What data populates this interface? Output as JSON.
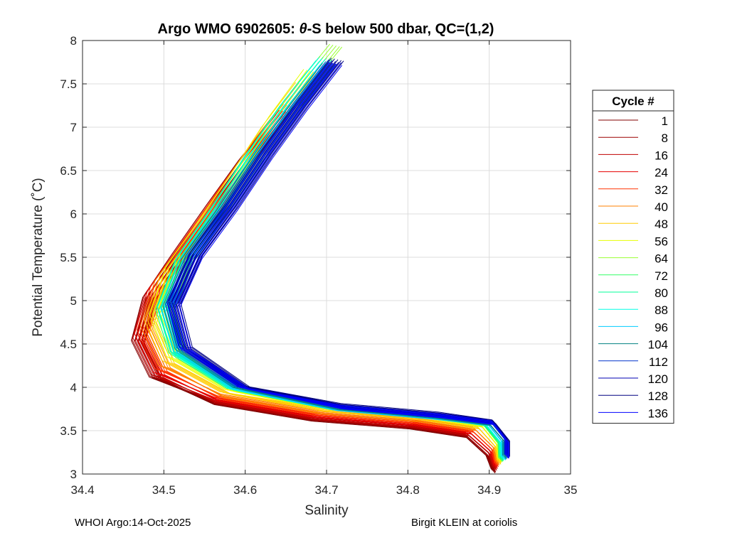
{
  "chart_data": {
    "type": "line",
    "title_parts": [
      "Argo WMO 6902605: ",
      "θ",
      "-S below 500 dbar,  QC=(1,2)"
    ],
    "xlabel": "Salinity",
    "ylabel": "Potential Temperature (˚C)",
    "xlim": [
      34.4,
      35
    ],
    "ylim": [
      3,
      8
    ],
    "xticks": [
      "34.4",
      "34.5",
      "34.6",
      "34.7",
      "34.8",
      "34.9",
      "35"
    ],
    "yticks": [
      "3",
      "3.5",
      "4",
      "4.5",
      "5",
      "5.5",
      "6",
      "6.5",
      "7",
      "7.5",
      "8"
    ],
    "grid": true,
    "legend_position": "right",
    "legend_title": "Cycle #",
    "series": [
      {
        "name": "1",
        "color": "#800000",
        "points": [
          [
            34.642,
            7.09
          ],
          [
            34.6,
            6.6
          ],
          [
            34.56,
            6.08
          ],
          [
            34.518,
            5.52
          ],
          [
            34.482,
            5.02
          ],
          [
            34.468,
            4.52
          ],
          [
            34.49,
            4.1
          ],
          [
            34.56,
            3.82
          ],
          [
            34.68,
            3.63
          ],
          [
            34.8,
            3.54
          ],
          [
            34.87,
            3.44
          ],
          [
            34.898,
            3.2
          ],
          [
            34.905,
            3.03
          ]
        ]
      },
      {
        "name": "8",
        "color": "#9b0000",
        "points": [
          [
            34.643,
            7.11
          ],
          [
            34.601,
            6.61
          ],
          [
            34.561,
            6.09
          ],
          [
            34.519,
            5.53
          ],
          [
            34.483,
            5.03
          ],
          [
            34.469,
            4.53
          ],
          [
            34.491,
            4.11
          ],
          [
            34.561,
            3.83
          ],
          [
            34.681,
            3.64
          ],
          [
            34.801,
            3.55
          ],
          [
            34.871,
            3.45
          ],
          [
            34.899,
            3.21
          ],
          [
            34.906,
            3.04
          ]
        ]
      },
      {
        "name": "16",
        "color": "#bf0000",
        "points": [
          [
            34.646,
            7.13
          ],
          [
            34.604,
            6.63
          ],
          [
            34.564,
            6.11
          ],
          [
            34.522,
            5.55
          ],
          [
            34.485,
            5.05
          ],
          [
            34.47,
            4.55
          ],
          [
            34.492,
            4.13
          ],
          [
            34.562,
            3.84
          ],
          [
            34.682,
            3.65
          ],
          [
            34.802,
            3.56
          ],
          [
            34.873,
            3.46
          ],
          [
            34.901,
            3.23
          ],
          [
            34.907,
            3.06
          ]
        ]
      },
      {
        "name": "24",
        "color": "#e60000",
        "points": [
          [
            34.65,
            7.18
          ],
          [
            34.608,
            6.68
          ],
          [
            34.568,
            6.16
          ],
          [
            34.526,
            5.6
          ],
          [
            34.488,
            5.1
          ],
          [
            34.472,
            4.6
          ],
          [
            34.494,
            4.16
          ],
          [
            34.565,
            3.86
          ],
          [
            34.685,
            3.67
          ],
          [
            34.805,
            3.58
          ],
          [
            34.876,
            3.48
          ],
          [
            34.903,
            3.25
          ],
          [
            34.908,
            3.08
          ]
        ]
      },
      {
        "name": "32",
        "color": "#ff3300",
        "points": [
          [
            34.655,
            7.25
          ],
          [
            34.613,
            6.75
          ],
          [
            34.573,
            6.23
          ],
          [
            34.531,
            5.66
          ],
          [
            34.492,
            5.15
          ],
          [
            34.475,
            4.64
          ],
          [
            34.497,
            4.2
          ],
          [
            34.568,
            3.88
          ],
          [
            34.688,
            3.69
          ],
          [
            34.808,
            3.6
          ],
          [
            34.879,
            3.5
          ],
          [
            34.905,
            3.27
          ],
          [
            34.909,
            3.1
          ]
        ]
      },
      {
        "name": "40",
        "color": "#ff8000",
        "points": [
          [
            34.662,
            7.35
          ],
          [
            34.62,
            6.85
          ],
          [
            34.58,
            6.31
          ],
          [
            34.537,
            5.73
          ],
          [
            34.497,
            5.21
          ],
          [
            34.479,
            4.69
          ],
          [
            34.501,
            4.24
          ],
          [
            34.572,
            3.9
          ],
          [
            34.692,
            3.71
          ],
          [
            34.812,
            3.62
          ],
          [
            34.882,
            3.52
          ],
          [
            34.907,
            3.29
          ],
          [
            34.91,
            3.12
          ]
        ]
      },
      {
        "name": "48",
        "color": "#ffcc00",
        "points": [
          [
            34.67,
            7.5
          ],
          [
            34.628,
            6.98
          ],
          [
            34.588,
            6.41
          ],
          [
            34.545,
            5.82
          ],
          [
            34.504,
            5.29
          ],
          [
            34.484,
            4.76
          ],
          [
            34.506,
            4.29
          ],
          [
            34.577,
            3.93
          ],
          [
            34.697,
            3.74
          ],
          [
            34.817,
            3.64
          ],
          [
            34.886,
            3.54
          ],
          [
            34.909,
            3.3
          ],
          [
            34.912,
            3.13
          ]
        ]
      },
      {
        "name": "56",
        "color": "#e6ff00",
        "points": [
          [
            34.68,
            7.65
          ],
          [
            34.637,
            7.1
          ],
          [
            34.596,
            6.52
          ],
          [
            34.553,
            5.92
          ],
          [
            34.511,
            5.38
          ],
          [
            34.49,
            4.83
          ],
          [
            34.511,
            4.34
          ],
          [
            34.582,
            3.96
          ],
          [
            34.702,
            3.76
          ],
          [
            34.822,
            3.66
          ],
          [
            34.89,
            3.56
          ],
          [
            34.911,
            3.32
          ],
          [
            34.913,
            3.15
          ]
        ]
      },
      {
        "name": "64",
        "color": "#99ff33",
        "points": [
          [
            34.712,
            7.94
          ],
          [
            34.665,
            7.4
          ],
          [
            34.62,
            6.8
          ],
          [
            34.574,
            6.16
          ],
          [
            34.53,
            5.56
          ],
          [
            34.505,
            4.97
          ],
          [
            34.52,
            4.44
          ],
          [
            34.59,
            4.0
          ],
          [
            34.71,
            3.78
          ],
          [
            34.83,
            3.68
          ],
          [
            34.893,
            3.57
          ],
          [
            34.913,
            3.33
          ],
          [
            34.915,
            3.17
          ]
        ]
      },
      {
        "name": "72",
        "color": "#33ff66",
        "points": [
          [
            34.7,
            7.8
          ],
          [
            34.655,
            7.28
          ],
          [
            34.612,
            6.7
          ],
          [
            34.568,
            6.08
          ],
          [
            34.525,
            5.5
          ],
          [
            34.5,
            4.92
          ],
          [
            34.516,
            4.4
          ],
          [
            34.586,
            3.98
          ],
          [
            34.706,
            3.77
          ],
          [
            34.826,
            3.67
          ],
          [
            34.892,
            3.58
          ],
          [
            34.913,
            3.34
          ],
          [
            34.914,
            3.16
          ]
        ]
      },
      {
        "name": "80",
        "color": "#00ff99",
        "points": [
          [
            34.695,
            7.75
          ],
          [
            34.65,
            7.22
          ],
          [
            34.607,
            6.64
          ],
          [
            34.564,
            6.02
          ],
          [
            34.522,
            5.45
          ],
          [
            34.498,
            4.88
          ],
          [
            34.514,
            4.38
          ],
          [
            34.585,
            3.97
          ],
          [
            34.705,
            3.76
          ],
          [
            34.825,
            3.66
          ],
          [
            34.893,
            3.58
          ],
          [
            34.914,
            3.35
          ],
          [
            34.915,
            3.17
          ]
        ]
      },
      {
        "name": "88",
        "color": "#00ffe6",
        "points": [
          [
            34.698,
            7.78
          ],
          [
            34.653,
            7.25
          ],
          [
            34.61,
            6.67
          ],
          [
            34.567,
            6.05
          ],
          [
            34.524,
            5.47
          ],
          [
            34.5,
            4.9
          ],
          [
            34.516,
            4.39
          ],
          [
            34.587,
            3.97
          ],
          [
            34.707,
            3.76
          ],
          [
            34.827,
            3.66
          ],
          [
            34.895,
            3.58
          ],
          [
            34.915,
            3.35
          ],
          [
            34.916,
            3.18
          ]
        ]
      },
      {
        "name": "96",
        "color": "#00ccff",
        "points": [
          [
            34.7,
            7.7
          ],
          [
            34.657,
            7.18
          ],
          [
            34.614,
            6.62
          ],
          [
            34.571,
            6.02
          ],
          [
            34.528,
            5.46
          ],
          [
            34.505,
            4.9
          ],
          [
            34.52,
            4.4
          ],
          [
            34.591,
            3.97
          ],
          [
            34.711,
            3.75
          ],
          [
            34.831,
            3.65
          ],
          [
            34.898,
            3.58
          ],
          [
            34.917,
            3.36
          ],
          [
            34.918,
            3.18
          ]
        ]
      },
      {
        "name": "104",
        "color": "#008080",
        "points": [
          [
            34.703,
            7.72
          ],
          [
            34.66,
            7.2
          ],
          [
            34.617,
            6.64
          ],
          [
            34.574,
            6.04
          ],
          [
            34.531,
            5.48
          ],
          [
            34.507,
            4.92
          ],
          [
            34.522,
            4.42
          ],
          [
            34.593,
            3.98
          ],
          [
            34.713,
            3.76
          ],
          [
            34.833,
            3.66
          ],
          [
            34.9,
            3.58
          ],
          [
            34.919,
            3.37
          ],
          [
            34.919,
            3.19
          ]
        ]
      },
      {
        "name": "112",
        "color": "#0033cc",
        "points": [
          [
            34.707,
            7.74
          ],
          [
            34.664,
            7.22
          ],
          [
            34.621,
            6.66
          ],
          [
            34.578,
            6.06
          ],
          [
            34.535,
            5.5
          ],
          [
            34.51,
            4.94
          ],
          [
            34.524,
            4.44
          ],
          [
            34.596,
            3.99
          ],
          [
            34.716,
            3.77
          ],
          [
            34.836,
            3.67
          ],
          [
            34.903,
            3.59
          ],
          [
            34.921,
            3.38
          ],
          [
            34.921,
            3.2
          ]
        ]
      },
      {
        "name": "120",
        "color": "#0000b3",
        "points": [
          [
            34.711,
            7.76
          ],
          [
            34.668,
            7.24
          ],
          [
            34.625,
            6.68
          ],
          [
            34.582,
            6.08
          ],
          [
            34.539,
            5.52
          ],
          [
            34.512,
            4.96
          ],
          [
            34.526,
            4.46
          ],
          [
            34.598,
            4.0
          ],
          [
            34.718,
            3.78
          ],
          [
            34.838,
            3.68
          ],
          [
            34.905,
            3.6
          ],
          [
            34.922,
            3.39
          ],
          [
            34.922,
            3.21
          ]
        ]
      },
      {
        "name": "128",
        "color": "#000080",
        "points": [
          [
            34.714,
            7.78
          ],
          [
            34.671,
            7.26
          ],
          [
            34.628,
            6.7
          ],
          [
            34.585,
            6.1
          ],
          [
            34.541,
            5.54
          ],
          [
            34.514,
            4.98
          ],
          [
            34.528,
            4.48
          ],
          [
            34.6,
            4.01
          ],
          [
            34.72,
            3.79
          ],
          [
            34.84,
            3.69
          ],
          [
            34.906,
            3.6
          ],
          [
            34.923,
            3.4
          ],
          [
            34.923,
            3.22
          ]
        ]
      },
      {
        "name": "136",
        "color": "#0000ff",
        "points": [
          [
            34.712,
            7.73
          ],
          [
            34.669,
            7.21
          ],
          [
            34.626,
            6.65
          ],
          [
            34.583,
            6.05
          ],
          [
            34.54,
            5.5
          ],
          [
            34.513,
            4.94
          ],
          [
            34.527,
            4.44
          ],
          [
            34.599,
            3.99
          ],
          [
            34.719,
            3.77
          ],
          [
            34.839,
            3.67
          ],
          [
            34.905,
            3.59
          ],
          [
            34.922,
            3.38
          ],
          [
            34.922,
            3.2
          ]
        ]
      }
    ]
  },
  "footer": {
    "left": "WHOI Argo:14-Oct-2025",
    "right": "Birgit KLEIN at coriolis"
  }
}
